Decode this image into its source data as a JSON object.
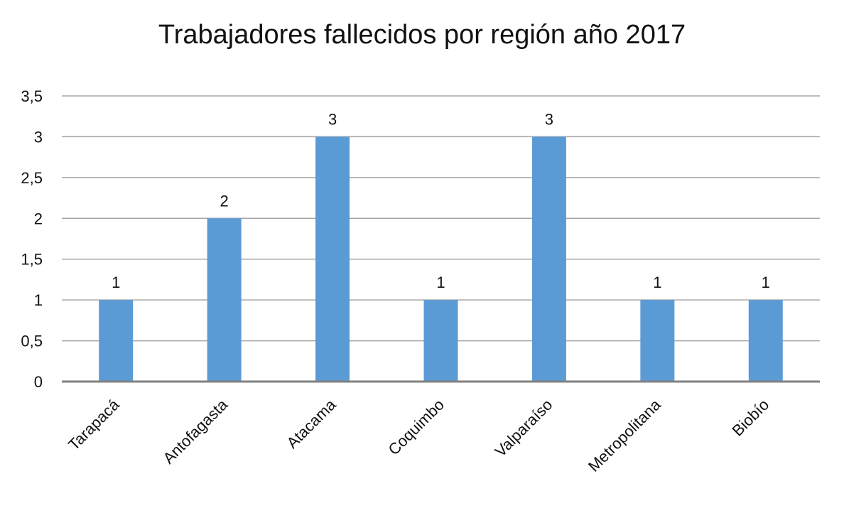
{
  "chart_data": {
    "type": "bar",
    "title": "Trabajadores fallecidos por región año 2017",
    "xlabel": "",
    "ylabel": "",
    "categories": [
      "Tarapacá",
      "Antofagasta",
      "Atacama",
      "Coquimbo",
      "Valparaíso",
      "Metropolitana",
      "Biobío"
    ],
    "values": [
      1,
      2,
      3,
      1,
      3,
      1,
      1
    ],
    "data_labels": [
      "1",
      "2",
      "3",
      "1",
      "3",
      "1",
      "1"
    ],
    "ylim": [
      0,
      3.5
    ],
    "y_ticks": [
      0,
      0.5,
      1,
      1.5,
      2,
      2.5,
      3,
      3.5
    ],
    "y_tick_labels": [
      "0",
      "0,5",
      "1",
      "1,5",
      "2",
      "2,5",
      "3",
      "3,5"
    ],
    "grid": true,
    "legend": "none",
    "bar_color": "#5B9BD5",
    "gridline_color": "#A6A6A6",
    "axis_color": "#808080"
  }
}
